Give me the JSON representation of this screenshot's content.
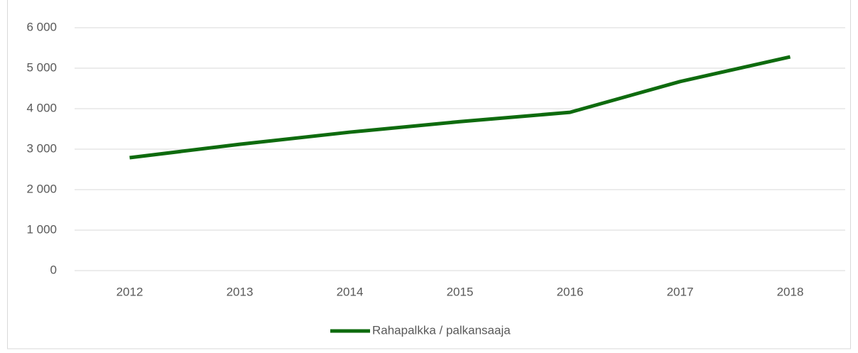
{
  "chart_data": {
    "type": "line",
    "categories": [
      "2012",
      "2013",
      "2014",
      "2015",
      "2016",
      "2017",
      "2018"
    ],
    "series": [
      {
        "name": "Rahapalkka / palkansaaja",
        "color": "#0e6b0e",
        "values": [
          2790,
          3120,
          3420,
          3680,
          3910,
          4670,
          5280
        ]
      }
    ],
    "ylim": [
      0,
      6000
    ],
    "yticks": [
      0,
      {
        "value": 1000,
        "label": "1 000"
      },
      {
        "value": 2000,
        "label": "2 000"
      },
      {
        "value": 3000,
        "label": "3 000"
      },
      {
        "value": 4000,
        "label": "4 000"
      },
      {
        "value": 5000,
        "label": "5 000"
      },
      {
        "value": 6000,
        "label": "6 000"
      }
    ],
    "grid": true,
    "legend": "bottom"
  }
}
